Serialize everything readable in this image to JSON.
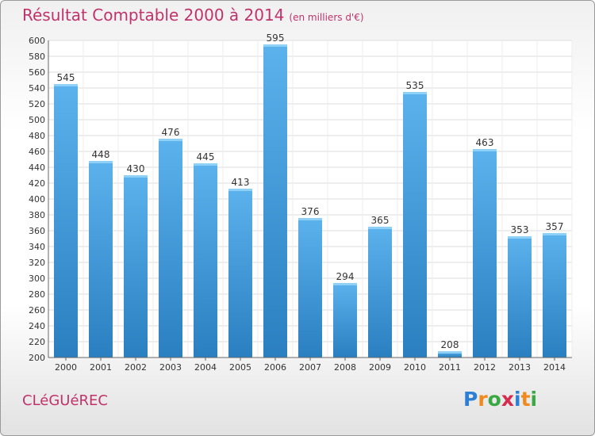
{
  "header": {
    "title": "Résultat Comptable 2000 à 2014",
    "subtitle": "(en milliers d'€)"
  },
  "footer": {
    "town": "CLéGUéREC",
    "logo_text": "Proxiti",
    "logo_letters": [
      "P",
      "r",
      "o",
      "x",
      "i",
      "t",
      "i"
    ],
    "logo_colors": [
      "#2b7fd4",
      "#f08a1c",
      "#3aa843",
      "#d42b4e",
      "#2b7fd4",
      "#f08a1c",
      "#3aa843"
    ]
  },
  "colors": {
    "accent": "#c0336a",
    "bar_top": "#5bb2ec",
    "bar_bottom": "#2a7fc0",
    "grid": "#dddddd"
  },
  "chart_data": {
    "type": "bar",
    "title": "Résultat Comptable 2000 à 2014",
    "unit": "(en milliers d'€)",
    "xlabel": "",
    "ylabel": "",
    "categories": [
      "2000",
      "2001",
      "2002",
      "2003",
      "2004",
      "2005",
      "2006",
      "2007",
      "2008",
      "2009",
      "2010",
      "2011",
      "2012",
      "2013",
      "2014"
    ],
    "values": [
      545,
      448,
      430,
      476,
      445,
      413,
      595,
      376,
      294,
      365,
      535,
      208,
      463,
      353,
      357
    ],
    "ylim": [
      200,
      600
    ],
    "yticks": [
      200,
      220,
      240,
      260,
      280,
      300,
      320,
      340,
      360,
      380,
      400,
      420,
      440,
      460,
      480,
      500,
      520,
      540,
      560,
      580,
      600
    ],
    "grid": true,
    "legend": "none"
  }
}
